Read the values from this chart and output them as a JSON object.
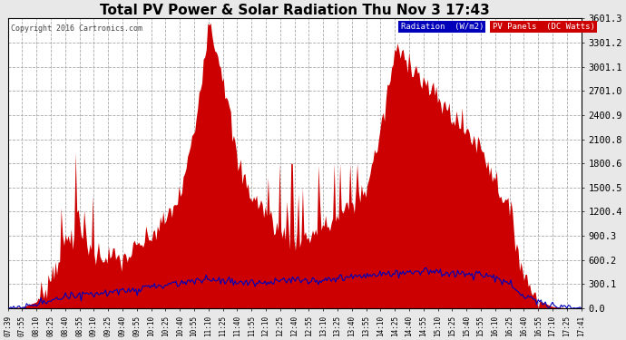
{
  "title": "Total PV Power & Solar Radiation Thu Nov 3 17:43",
  "copyright": "Copyright 2016 Cartronics.com",
  "legend_radiation": "Radiation  (W/m2)",
  "legend_pv": "PV Panels  (DC Watts)",
  "ytick_vals": [
    0.0,
    300.1,
    600.2,
    900.3,
    1200.4,
    1500.5,
    1800.6,
    2100.7,
    2400.8,
    2701.0,
    3001.1,
    3301.2,
    3601.3
  ],
  "ytick_labels": [
    "0.0",
    "300.1",
    "600.2",
    "900.3",
    "1200.4",
    "1500.5",
    "1800.6",
    "2100.8",
    "2400.9",
    "2701.0",
    "3001.1",
    "3301.2",
    "3601.3"
  ],
  "ymax": 3601.3,
  "bg_color": "#e8e8e8",
  "plot_bg_color": "#ffffff",
  "grid_color": "#aaaaaa",
  "pv_color": "#cc0000",
  "radiation_color": "#0000bb",
  "title_color": "#000000",
  "copyright_color": "#444444",
  "time_labels": [
    "07:39",
    "07:55",
    "08:10",
    "08:25",
    "08:40",
    "08:55",
    "09:10",
    "09:25",
    "09:40",
    "09:55",
    "10:10",
    "10:25",
    "10:40",
    "10:55",
    "11:10",
    "11:25",
    "11:40",
    "11:55",
    "12:10",
    "12:25",
    "12:40",
    "12:55",
    "13:10",
    "13:25",
    "13:40",
    "13:55",
    "14:10",
    "14:25",
    "14:40",
    "14:55",
    "15:10",
    "15:25",
    "15:40",
    "15:55",
    "16:10",
    "16:25",
    "16:40",
    "16:55",
    "17:10",
    "17:25",
    "17:41"
  ]
}
